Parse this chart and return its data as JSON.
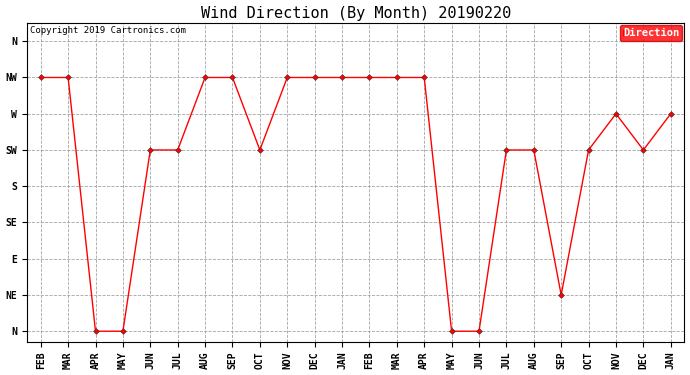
{
  "title": "Wind Direction (By Month) 20190220",
  "copyright": "Copyright 2019 Cartronics.com",
  "legend_label": "Direction",
  "x_labels": [
    "FEB",
    "MAR",
    "APR",
    "MAY",
    "JUN",
    "JUL",
    "AUG",
    "SEP",
    "OCT",
    "NOV",
    "DEC",
    "JAN",
    "FEB",
    "MAR",
    "APR",
    "MAY",
    "JUN",
    "JUL",
    "AUG",
    "SEP",
    "OCT",
    "NOV",
    "DEC",
    "JAN"
  ],
  "y_labels": [
    "N",
    "NE",
    "E",
    "SE",
    "S",
    "SW",
    "W",
    "NW",
    "N"
  ],
  "y_ticks": [
    0,
    1,
    2,
    3,
    4,
    5,
    6,
    7,
    8
  ],
  "data_values": [
    7,
    7,
    0,
    0,
    5,
    5,
    7,
    7,
    5,
    7,
    7,
    7,
    7,
    7,
    7,
    0,
    0,
    5,
    5,
    1,
    5,
    6,
    5,
    6
  ],
  "line_color": "#ff0000",
  "marker": "D",
  "marker_size": 3,
  "bg_color": "#ffffff",
  "plot_bg_color": "#ffffff",
  "grid_color": "#999999",
  "grid_style": "--",
  "title_fontsize": 11,
  "tick_fontsize": 7,
  "legend_bg": "#ff0000",
  "legend_text_color": "#ffffff",
  "ylim_min": -0.3,
  "ylim_max": 8.5
}
